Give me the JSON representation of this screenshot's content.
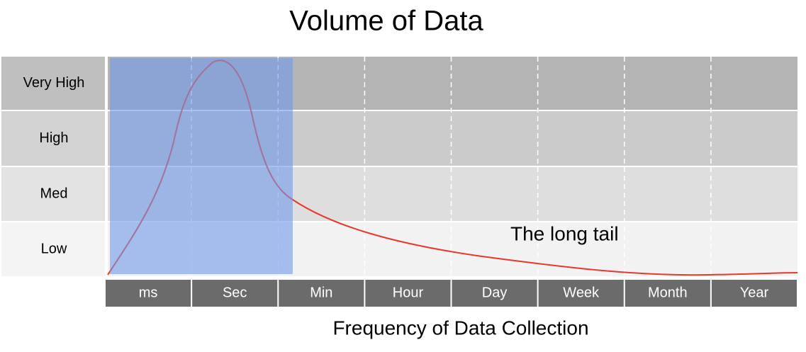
{
  "title": "Volume of Data",
  "rows": [
    "Very High",
    "High",
    "Med",
    "Low"
  ],
  "columns": [
    "ms",
    "Sec",
    "Min",
    "Hour",
    "Day",
    "Week",
    "Month",
    "Year"
  ],
  "x_axis_title": "Frequency of Data Collection",
  "annotation": "The long tail"
}
